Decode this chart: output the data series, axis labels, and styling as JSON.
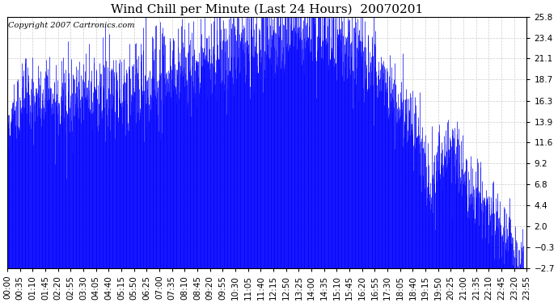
{
  "title": "Wind Chill per Minute (Last 24 Hours)  20070201",
  "copyright_text": "Copyright 2007 Cartronics.com",
  "yticks": [
    25.8,
    23.4,
    21.1,
    18.7,
    16.3,
    13.9,
    11.6,
    9.2,
    6.8,
    4.4,
    2.0,
    -0.3,
    -2.7
  ],
  "ymin": -2.7,
  "ymax": 25.8,
  "bar_color": "#0000ff",
  "background_color": "#ffffff",
  "plot_bg_color": "#ffffff",
  "grid_color": "#cccccc",
  "title_fontsize": 11,
  "copyright_fontsize": 7,
  "tick_fontsize": 7.5,
  "xtick_labels": [
    "00:00",
    "00:35",
    "01:10",
    "01:45",
    "02:20",
    "02:55",
    "03:30",
    "04:05",
    "04:40",
    "05:15",
    "05:50",
    "06:25",
    "07:00",
    "07:35",
    "08:10",
    "08:45",
    "09:20",
    "09:55",
    "10:30",
    "11:05",
    "11:40",
    "12:15",
    "12:50",
    "13:25",
    "14:00",
    "14:35",
    "15:10",
    "15:45",
    "16:20",
    "16:55",
    "17:30",
    "18:05",
    "18:40",
    "19:15",
    "19:50",
    "20:25",
    "21:00",
    "21:35",
    "22:10",
    "22:45",
    "23:20",
    "23:55"
  ]
}
